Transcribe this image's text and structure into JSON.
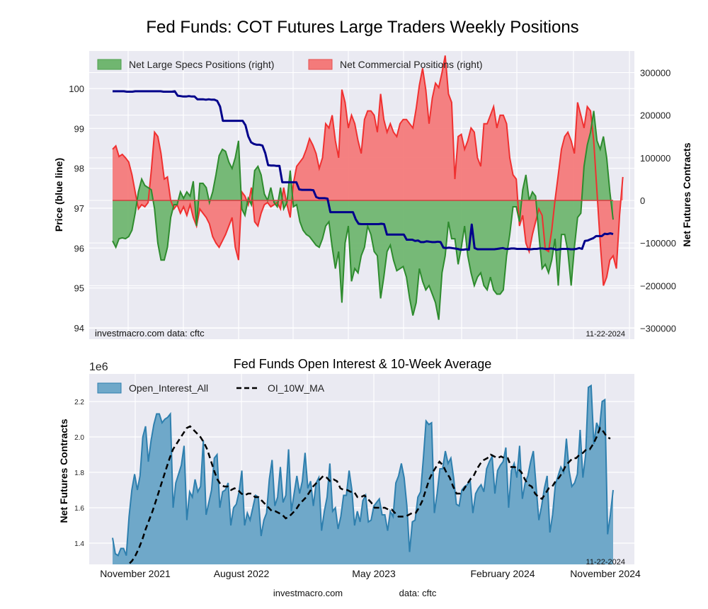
{
  "chart_data": [
    {
      "type": "area",
      "title": "Fed Funds: COT Futures Large Traders Weekly Positions",
      "ylabel_left": "Price (blue line)",
      "ylabel_right": "Net Futures Contracts",
      "ylim_left": [
        93.9,
        100.8
      ],
      "ylim_right": [
        -310000,
        360000
      ],
      "yticks_left": [
        "94",
        "95",
        "96",
        "97",
        "98",
        "99",
        "100"
      ],
      "yticks_right": [
        "−300000",
        "−200000",
        "−100000",
        "0",
        "100000",
        "200000",
        "300000"
      ],
      "yticks_right_values": [
        -300000,
        -200000,
        -100000,
        0,
        100000,
        200000,
        300000
      ],
      "yticks_left_values": [
        94,
        95,
        96,
        97,
        98,
        99,
        100
      ],
      "grid": true,
      "legend_position": "top-left",
      "legend": [
        "Net Large Specs Positions (right)",
        "Net Commercial Positions (right)"
      ],
      "footer_left": "investmacro.com    data: cftc",
      "footer_right": "11-22-2024",
      "colors": {
        "specs": "#2e8b2e",
        "specs_fill": "#70b670",
        "commercial": "#f03030",
        "commercial_fill": "#f47a7a",
        "price": "#00008b"
      },
      "series": [
        {
          "name": "Net Large Specs Positions (right)",
          "axis": "right",
          "values": [
            -95000,
            -110000,
            -90000,
            -88000,
            -90000,
            -85000,
            -70000,
            -30000,
            20000,
            50000,
            35000,
            30000,
            25000,
            -20000,
            -100000,
            -140000,
            -140000,
            -110000,
            -40000,
            -10000,
            -10000,
            20000,
            5000,
            20000,
            10000,
            45000,
            -60000,
            40000,
            40000,
            30000,
            -5000,
            20000,
            60000,
            105000,
            120000,
            115000,
            90000,
            75000,
            100000,
            140000,
            -20000,
            -35000,
            5000,
            -10000,
            70000,
            80000,
            60000,
            15000,
            0,
            30000,
            -5000,
            -15000,
            30000,
            -20000,
            -5000,
            70000,
            -15000,
            -10000,
            -50000,
            -70000,
            -80000,
            -85000,
            -95000,
            -105000,
            -110000,
            -90000,
            -60000,
            -50000,
            -110000,
            -160000,
            -120000,
            -240000,
            -100000,
            -60000,
            -190000,
            -160000,
            -170000,
            -130000,
            -110000,
            -60000,
            -80000,
            -120000,
            -130000,
            -230000,
            -180000,
            -120000,
            -105000,
            -140000,
            -165000,
            -160000,
            -155000,
            -180000,
            -230000,
            -270000,
            -240000,
            -160000,
            -190000,
            -210000,
            -200000,
            -220000,
            -240000,
            -280000,
            -170000,
            -130000,
            -50000,
            -90000,
            -90000,
            -150000,
            -110000,
            -60000,
            -130000,
            -170000,
            -200000,
            -180000,
            -170000,
            -200000,
            -210000,
            -180000,
            -210000,
            -220000,
            -220000,
            -210000,
            -130000,
            -80000,
            -15000,
            -15000,
            -50000,
            25000,
            60000,
            0,
            20000,
            10000,
            -80000,
            -160000,
            -150000,
            -170000,
            -140000,
            -90000,
            -200000,
            -80000,
            -80000,
            -120000,
            -200000,
            -110000,
            -40000,
            -30000,
            80000,
            130000,
            160000,
            210000,
            140000,
            120000,
            150000,
            100000,
            20000,
            -45000
          ],
          "values_commercial": [
            120000,
            128000,
            103000,
            108000,
            100000,
            90000,
            60000,
            20000,
            -20000,
            -10000,
            -15000,
            -5000,
            70000,
            160000,
            150000,
            110000,
            50000,
            55000,
            0,
            -20000,
            -10000,
            -30000,
            -15000,
            -35000,
            -10000,
            -40000,
            -60000,
            -20000,
            -30000,
            -40000,
            -55000,
            -85000,
            -100000,
            -110000,
            -95000,
            -80000,
            -60000,
            -40000,
            -110000,
            -140000,
            20000,
            10000,
            -10000,
            30000,
            -50000,
            -60000,
            -30000,
            -10000,
            -5000,
            -15000,
            -10000,
            -5000,
            -20000,
            30000,
            -10000,
            -40000,
            40000,
            80000,
            90000,
            100000,
            120000,
            145000,
            130000,
            110000,
            75000,
            100000,
            180000,
            170000,
            200000,
            140000,
            100000,
            260000,
            230000,
            170000,
            200000,
            180000,
            140000,
            110000,
            190000,
            210000,
            210000,
            200000,
            160000,
            250000,
            190000,
            160000,
            180000,
            160000,
            150000,
            180000,
            190000,
            190000,
            180000,
            170000,
            215000,
            270000,
            310000,
            260000,
            180000,
            240000,
            275000,
            265000,
            300000,
            340000,
            250000,
            230000,
            50000,
            150000,
            155000,
            120000,
            140000,
            170000,
            160000,
            100000,
            80000,
            180000,
            180000,
            200000,
            220000,
            170000,
            200000,
            200000,
            180000,
            100000,
            60000,
            50000,
            -60000,
            -35000,
            -100000,
            -120000,
            -80000,
            -50000,
            -20000,
            -35000,
            -115000,
            -120000,
            -70000,
            0,
            60000,
            120000,
            150000,
            160000,
            140000,
            110000,
            230000,
            200000,
            170000,
            220000,
            210000,
            140000,
            20000,
            -100000,
            -200000,
            -180000,
            -140000,
            -130000,
            -160000,
            -35000,
            55000
          ]
        }
      ],
      "price_values": [
        99.93,
        99.93,
        99.93,
        99.93,
        99.93,
        99.92,
        99.92,
        99.92,
        99.93,
        99.93,
        99.93,
        99.93,
        99.93,
        99.93,
        99.93,
        99.93,
        99.93,
        99.93,
        99.92,
        99.92,
        99.92,
        99.92,
        99.93,
        99.82,
        99.81,
        99.8,
        99.8,
        99.81,
        99.8,
        99.8,
        99.73,
        99.73,
        99.73,
        99.72,
        99.73,
        99.72,
        99.72,
        99.69,
        99.55,
        99.19,
        99.19,
        99.19,
        99.19,
        99.19,
        99.19,
        99.19,
        99.19,
        99.08,
        98.8,
        98.65,
        98.61,
        98.59,
        98.59,
        98.57,
        98.38,
        98.08,
        98.07,
        98.07,
        98.06,
        98.06,
        97.65,
        97.65,
        97.65,
        97.65,
        97.65,
        97.65,
        97.47,
        97.46,
        97.46,
        97.46,
        97.46,
        97.45,
        97.28,
        97.25,
        97.25,
        97.25,
        97.24,
        96.9,
        96.9,
        96.9,
        96.9,
        96.9,
        96.9,
        96.9,
        96.9,
        96.9,
        96.72,
        96.61,
        96.6,
        96.6,
        96.6,
        96.6,
        96.6,
        96.6,
        96.6,
        96.61,
        96.6,
        96.34,
        96.34,
        96.34,
        96.34,
        96.34,
        96.34,
        96.34,
        96.21,
        96.21,
        96.21,
        96.18,
        96.19,
        96.15,
        96.15,
        96.17,
        96.16,
        96.15,
        96.15,
        96.16,
        96.15,
        96.01,
        96.0,
        96.01,
        96.0,
        95.99,
        95.98,
        95.96,
        95.96,
        95.97,
        95.96,
        96.59,
        96.0,
        95.97,
        95.97,
        95.97,
        95.97,
        95.97,
        95.97,
        95.97,
        95.98,
        95.99,
        96.0,
        95.98,
        95.98,
        95.99,
        95.99,
        95.98,
        95.98,
        95.98,
        95.98,
        95.97,
        95.97,
        95.98,
        95.98,
        95.99,
        95.99,
        95.98,
        95.98,
        95.99,
        95.98,
        95.96,
        95.97,
        95.98,
        95.98,
        95.98,
        95.97,
        95.97,
        95.98,
        96.0,
        95.98,
        96.18,
        96.19,
        96.22,
        96.25,
        96.3,
        96.3,
        96.3,
        96.36,
        96.35,
        96.37,
        96.35
      ]
    },
    {
      "type": "area",
      "title": "Fed Funds Open Interest & 10-Week Average",
      "ylabel": "Net Futures Contracts",
      "yscale_label": "1e6",
      "ylim": [
        1.27,
        2.33
      ],
      "yticks": [
        "1.4",
        "1.6",
        "1.8",
        "2.0",
        "2.2"
      ],
      "yticks_values": [
        1.4,
        1.6,
        1.8,
        2.0,
        2.2
      ],
      "xticks": [
        "November 2021",
        "August 2022",
        "May 2023",
        "February 2024",
        "November 2024"
      ],
      "grid": true,
      "legend_position": "top-left",
      "legend": [
        "Open_Interest_All",
        "OI_10W_MA"
      ],
      "footer_right": "11-22-2024",
      "footer_center_left": "investmacro.com",
      "footer_center_right": "data: cftc",
      "colors": {
        "oi": "#2e7fae",
        "oi_fill": "#6fa8c9",
        "ma": "#000000"
      },
      "series": [
        {
          "name": "Open_Interest_All",
          "values": [
            1.43,
            1.34,
            1.33,
            1.37,
            1.37,
            1.33,
            1.55,
            1.7,
            1.79,
            1.7,
            1.78,
            2.0,
            2.06,
            1.86,
            1.98,
            2.07,
            2.13,
            2.13,
            2.08,
            2.1,
            2.11,
            2.13,
            1.6,
            1.74,
            1.79,
            1.84,
            1.95,
            1.53,
            1.69,
            1.66,
            1.76,
            1.69,
            1.72,
            1.98,
            1.56,
            1.63,
            1.7,
            1.88,
            1.9,
            1.6,
            1.69,
            1.7,
            1.74,
            1.5,
            1.6,
            1.62,
            1.69,
            1.81,
            1.5,
            1.57,
            1.53,
            1.6,
            1.67,
            1.66,
            1.44,
            1.53,
            1.57,
            1.76,
            1.87,
            1.61,
            1.66,
            1.83,
            1.63,
            1.67,
            1.93,
            1.58,
            1.68,
            1.78,
            1.68,
            1.75,
            1.91,
            1.71,
            1.75,
            1.61,
            1.74,
            1.77,
            1.47,
            1.58,
            1.66,
            1.85,
            1.58,
            1.6,
            1.48,
            1.55,
            1.67,
            1.67,
            1.81,
            1.7,
            1.5,
            1.58,
            1.52,
            1.64,
            1.67,
            1.52,
            1.53,
            1.61,
            1.63,
            1.65,
            1.56,
            1.56,
            1.47,
            1.58,
            1.55,
            1.74,
            1.78,
            1.85,
            1.77,
            1.61,
            1.35,
            1.52,
            1.53,
            1.66,
            1.69,
            1.88,
            2.09,
            2.07,
            2.08,
            1.57,
            1.68,
            1.82,
            1.82,
            1.92,
            1.85,
            1.88,
            1.77,
            1.62,
            1.61,
            1.7,
            1.72,
            1.73,
            1.76,
            1.57,
            1.68,
            1.71,
            1.73,
            1.69,
            1.82,
            1.86,
            1.89,
            1.68,
            1.81,
            1.84,
            1.86,
            1.94,
            1.6,
            1.81,
            1.85,
            1.77,
            1.95,
            1.65,
            1.74,
            1.78,
            1.86,
            1.92,
            1.72,
            1.53,
            1.61,
            1.71,
            1.78,
            1.46,
            1.56,
            1.73,
            1.78,
            1.83,
            1.8,
            1.99,
            1.81,
            1.72,
            1.74,
            1.79,
            2.04,
            1.77,
            1.9,
            2.28,
            2.29,
            1.96,
            2.08,
            2.04,
            2.2,
            2.21,
            1.45,
            1.56,
            1.7
          ]
        },
        {
          "name": "OI_10W_MA",
          "values": [
            1.26,
            1.27,
            1.28,
            1.3,
            1.33,
            1.37,
            1.42,
            1.48,
            1.53,
            1.58,
            1.64,
            1.7,
            1.76,
            1.82,
            1.88,
            1.93,
            1.96,
            1.99,
            2.02,
            2.05,
            2.06,
            2.04,
            2.02,
            2.0,
            1.97,
            1.93,
            1.87,
            1.81,
            1.76,
            1.73,
            1.72,
            1.72,
            1.7,
            1.71,
            1.7,
            1.68,
            1.67,
            1.68,
            1.68,
            1.66,
            1.66,
            1.64,
            1.62,
            1.6,
            1.58,
            1.58,
            1.57,
            1.56,
            1.54,
            1.55,
            1.57,
            1.59,
            1.62,
            1.64,
            1.66,
            1.69,
            1.72,
            1.74,
            1.76,
            1.78,
            1.77,
            1.75,
            1.76,
            1.75,
            1.71,
            1.7,
            1.7,
            1.69,
            1.69,
            1.66,
            1.66,
            1.67,
            1.65,
            1.63,
            1.6,
            1.6,
            1.6,
            1.6,
            1.59,
            1.59,
            1.57,
            1.55,
            1.55,
            1.55,
            1.56,
            1.57,
            1.57,
            1.6,
            1.64,
            1.7,
            1.76,
            1.8,
            1.83,
            1.86,
            1.84,
            1.8,
            1.77,
            1.72,
            1.68,
            1.68,
            1.7,
            1.73,
            1.76,
            1.78,
            1.82,
            1.85,
            1.87,
            1.88,
            1.9,
            1.89,
            1.88,
            1.89,
            1.88,
            1.88,
            1.83,
            1.83,
            1.82,
            1.8,
            1.76,
            1.73,
            1.72,
            1.68,
            1.66,
            1.65,
            1.68,
            1.71,
            1.72,
            1.75,
            1.77,
            1.8,
            1.84,
            1.86,
            1.88,
            1.88,
            1.9,
            1.91,
            1.93,
            1.93,
            1.96,
            2.0,
            2.05,
            2.03,
            2.0,
            1.99
          ]
        }
      ]
    }
  ]
}
